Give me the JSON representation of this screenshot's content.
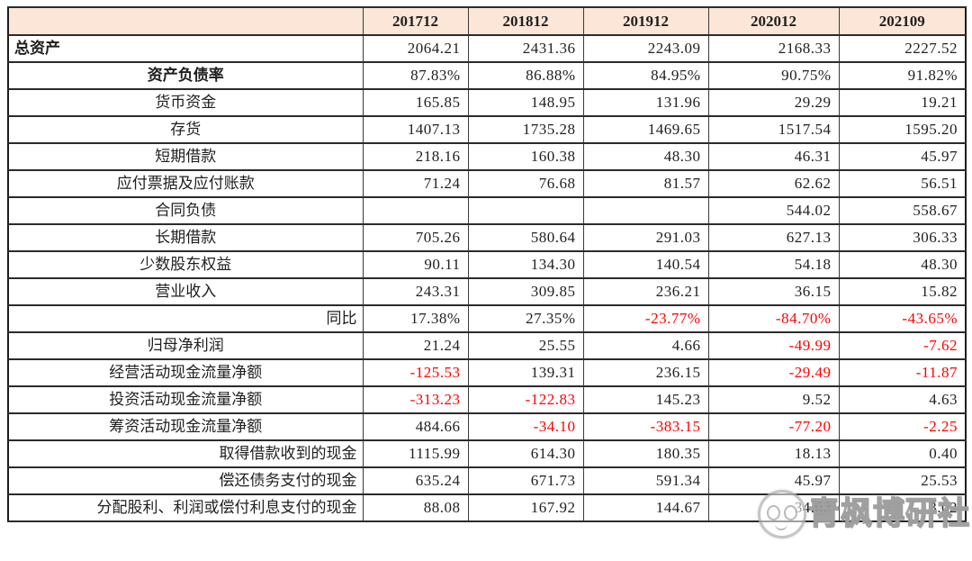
{
  "colors": {
    "header_bg": "#fce6d8",
    "negative_text": "#fe0000",
    "normal_text": "#1f1f1f",
    "border": "#2b2b2b",
    "watermark_gray": "#999999"
  },
  "table": {
    "header": {
      "corner": "",
      "columns": [
        "201712",
        "201812",
        "201912",
        "202012",
        "202109"
      ]
    },
    "rows": [
      {
        "label": "总资产",
        "align": "left",
        "bold": true,
        "values": [
          "2064.21",
          "2431.36",
          "2243.09",
          "2168.33",
          "2227.52"
        ]
      },
      {
        "label": "资产负债率",
        "align": "center",
        "bold": true,
        "values": [
          "87.83%",
          "86.88%",
          "84.95%",
          "90.75%",
          "91.82%"
        ]
      },
      {
        "label": "货币资金",
        "align": "center",
        "values": [
          "165.85",
          "148.95",
          "131.96",
          "29.29",
          "19.21"
        ]
      },
      {
        "label": "存货",
        "align": "center",
        "values": [
          "1407.13",
          "1735.28",
          "1469.65",
          "1517.54",
          "1595.20"
        ]
      },
      {
        "label": "短期借款",
        "align": "center",
        "values": [
          "218.16",
          "160.38",
          "48.30",
          "46.31",
          "45.97"
        ]
      },
      {
        "label": "应付票据及应付账款",
        "align": "center",
        "values": [
          "71.24",
          "76.68",
          "81.57",
          "62.62",
          "56.51"
        ]
      },
      {
        "label": "合同负债",
        "align": "center",
        "values": [
          "",
          "",
          "",
          "544.02",
          "558.67"
        ]
      },
      {
        "label": "长期借款",
        "align": "center",
        "values": [
          "705.26",
          "580.64",
          "291.03",
          "627.13",
          "306.33"
        ]
      },
      {
        "label": "少数股东权益",
        "align": "center",
        "values": [
          "90.11",
          "134.30",
          "140.54",
          "54.18",
          "48.30"
        ]
      },
      {
        "label": "营业收入",
        "align": "center",
        "values": [
          "243.31",
          "309.85",
          "236.21",
          "36.15",
          "15.82"
        ]
      },
      {
        "label": "同比",
        "align": "right",
        "values": [
          "17.38%",
          "27.35%",
          "-23.77%",
          "-84.70%",
          "-43.65%"
        ]
      },
      {
        "label": "归母净利润",
        "align": "center",
        "values": [
          "21.24",
          "25.55",
          "4.66",
          "-49.99",
          "-7.62"
        ]
      },
      {
        "label": "经营活动现金流量净额",
        "align": "center",
        "values": [
          "-125.53",
          "139.31",
          "236.15",
          "-29.49",
          "-11.87"
        ]
      },
      {
        "label": "投资活动现金流量净额",
        "align": "center",
        "values": [
          "-313.23",
          "-122.83",
          "145.23",
          "9.52",
          "4.63"
        ]
      },
      {
        "label": "筹资活动现金流量净额",
        "align": "center",
        "values": [
          "484.66",
          "-34.10",
          "-383.15",
          "-77.20",
          "-2.25"
        ]
      },
      {
        "label": "取得借款收到的现金",
        "align": "right",
        "values": [
          "1115.99",
          "614.30",
          "180.35",
          "18.13",
          "0.40"
        ]
      },
      {
        "label": "偿还债务支付的现金",
        "align": "right",
        "values": [
          "635.24",
          "671.73",
          "591.34",
          "45.97",
          "25.53"
        ]
      },
      {
        "label": "分配股利、利润或偿付利息支付的现金",
        "align": "right",
        "values": [
          "88.08",
          "167.92",
          "144.67",
          "34.02",
          "3.02"
        ]
      }
    ]
  },
  "watermark": {
    "text": "青枫博研社",
    "logo": "round-face-logo"
  }
}
